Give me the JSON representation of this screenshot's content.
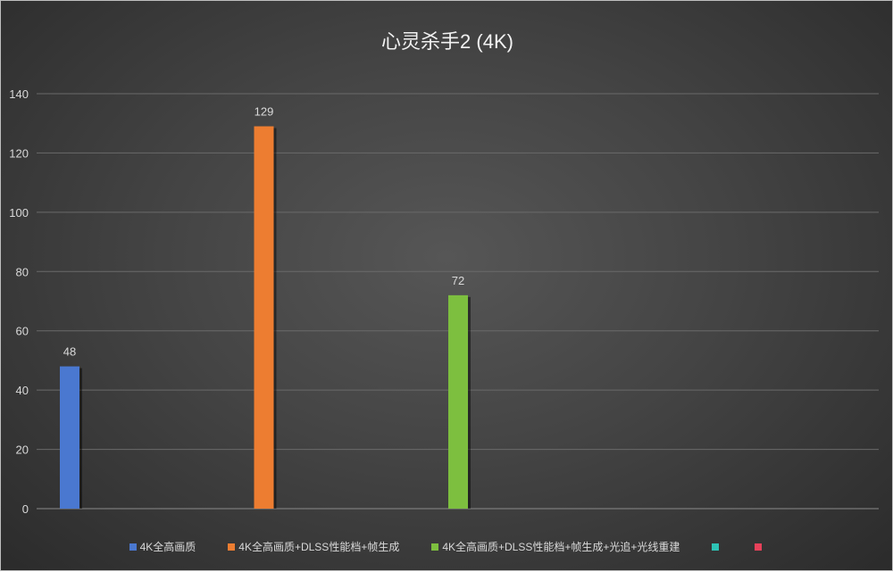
{
  "chart_data": {
    "type": "bar",
    "title": "心灵杀手2 (4K)",
    "categories": [
      ""
    ],
    "series": [
      {
        "name": "4K全高画质",
        "values": [
          48
        ],
        "color": "#4a78d0"
      },
      {
        "name": "4K全高画质+DLSS性能档+帧生成",
        "values": [
          129
        ],
        "color": "#ed7d31"
      },
      {
        "name": "4K全高画质+DLSS性能档+帧生成+光追+光线重建",
        "values": [
          72
        ],
        "color": "#7dbf3f"
      },
      {
        "name": "",
        "values": [
          null
        ],
        "color": "#2ec4b6"
      },
      {
        "name": "",
        "values": [
          null
        ],
        "color": "#e8415a"
      }
    ],
    "ylim": [
      0,
      140
    ],
    "yticks": [
      0,
      20,
      40,
      60,
      80,
      100,
      120,
      140
    ],
    "grid": true,
    "legend": "bottom",
    "data_labels": true
  }
}
